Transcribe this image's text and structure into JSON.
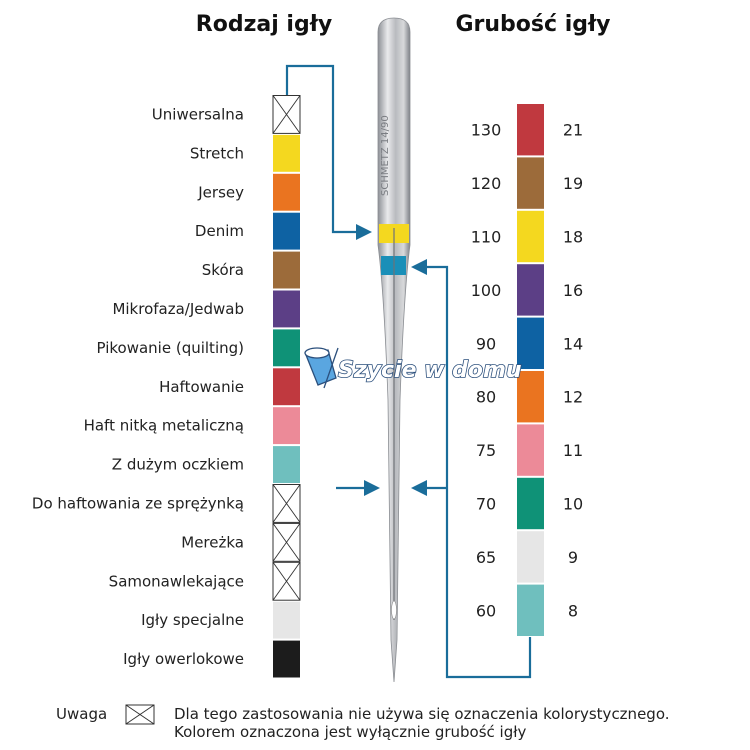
{
  "headings": {
    "type": "Rodzaj igły",
    "size": "Grubość igły"
  },
  "needle_types": [
    {
      "label": "Uniwersalna",
      "color": null
    },
    {
      "label": "Stretch",
      "color": "#f4d81f"
    },
    {
      "label": "Jersey",
      "color": "#ea7420"
    },
    {
      "label": "Denim",
      "color": "#0e62a3"
    },
    {
      "label": "Skóra",
      "color": "#9c6b3a"
    },
    {
      "label": "Mikrofaza/Jedwab",
      "color": "#5c3f86"
    },
    {
      "label": "Pikowanie (quilting)",
      "color": "#0f9277"
    },
    {
      "label": "Haftowanie",
      "color": "#c0393f"
    },
    {
      "label": "Haft nitką metaliczną",
      "color": "#ec8a98"
    },
    {
      "label": "Z dużym oczkiem",
      "color": "#6fbfbe"
    },
    {
      "label": "Do haftowania ze sprężynką",
      "color": null
    },
    {
      "label": "Mereżka",
      "color": null
    },
    {
      "label": "Samonawlekające",
      "color": null
    },
    {
      "label": "Igły specjalne",
      "color": "#e6e6e6"
    },
    {
      "label": "Igły owerlokowe",
      "color": "#1c1c1c"
    }
  ],
  "needle_sizes": [
    {
      "metric": "130",
      "us": "21",
      "color": "#c0393f"
    },
    {
      "metric": "120",
      "us": "19",
      "color": "#9c6b3a"
    },
    {
      "metric": "110",
      "us": "18",
      "color": "#f4d81f"
    },
    {
      "metric": "100",
      "us": "16",
      "color": "#5c3f86"
    },
    {
      "metric": "90",
      "us": "14",
      "color": "#0e62a3"
    },
    {
      "metric": "80",
      "us": "12",
      "color": "#ea7420"
    },
    {
      "metric": "75",
      "us": "11",
      "color": "#ec8a98"
    },
    {
      "metric": "70",
      "us": "10",
      "color": "#0f9277"
    },
    {
      "metric": "65",
      "us": "9",
      "color": "#e6e6e6"
    },
    {
      "metric": "60",
      "us": "8",
      "color": "#6fbfbe"
    }
  ],
  "needle": {
    "engraving": "SCHMETZ 14/90",
    "band_type_color": "#f4d81f",
    "band_size_color": "#1a8fb8"
  },
  "connector_color": "#1a6d9a",
  "note": {
    "label": "Uwaga",
    "line1": "Dla tego zastosowania nie używa się oznaczenia kolorystycznego.",
    "line2": "Kolorem oznaczona jest wyłącznie grubość igły"
  },
  "watermark": "Szycie w domu"
}
